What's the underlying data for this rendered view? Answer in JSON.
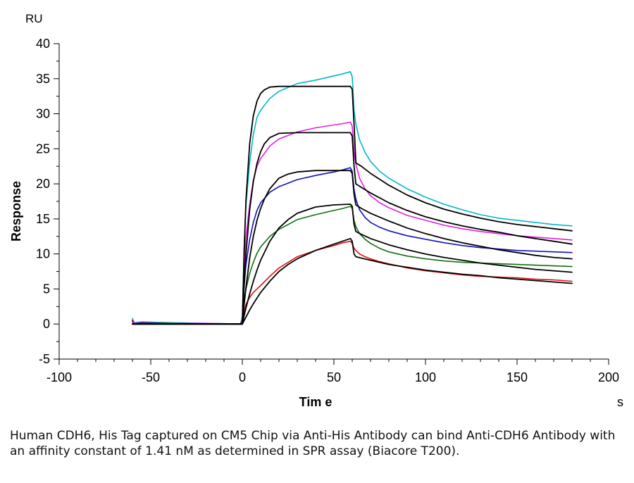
{
  "chart_data": {
    "type": "line",
    "title": "",
    "xlabel": "Tim e",
    "x_unit": "s",
    "ylabel": "Response",
    "y_unit": "RU",
    "xlim": [
      -100,
      200
    ],
    "ylim": [
      -5,
      40
    ],
    "x_ticks": [
      -100,
      -50,
      0,
      50,
      100,
      150,
      200
    ],
    "y_ticks": [
      -5,
      0,
      5,
      10,
      15,
      20,
      25,
      30,
      35,
      40
    ],
    "x_minor_step": 10,
    "y_minor_step": 2.5,
    "grid": false,
    "legend": "none",
    "fit_color": "#000000",
    "series": [
      {
        "color": "#00B8C8",
        "kind": "measured",
        "x": [
          -60,
          -59,
          -55,
          -40,
          -20,
          -1,
          0,
          0.5,
          1,
          2,
          4,
          6,
          8,
          10,
          15,
          20,
          30,
          40,
          50,
          55,
          59,
          60,
          61,
          62,
          64,
          67,
          70,
          75,
          80,
          90,
          100,
          110,
          120,
          130,
          140,
          150,
          160,
          170,
          180
        ],
        "y": [
          0.8,
          0.2,
          0.3,
          0.2,
          0.1,
          0,
          1,
          6,
          11,
          17,
          23,
          27,
          29.5,
          30.5,
          32.2,
          33.2,
          34.3,
          34.8,
          35.4,
          35.7,
          36,
          35.3,
          30.5,
          28.5,
          26.3,
          24.5,
          23.2,
          21.8,
          20.8,
          19.3,
          18.1,
          17.1,
          16.3,
          15.6,
          15.1,
          14.8,
          14.5,
          14.2,
          14
        ]
      },
      {
        "color": "#E020E0",
        "kind": "measured",
        "x": [
          -60,
          -59,
          -55,
          -40,
          -20,
          -1,
          0,
          0.5,
          1,
          2,
          4,
          6,
          8,
          10,
          15,
          20,
          30,
          40,
          50,
          55,
          59,
          60,
          61,
          62,
          64,
          67,
          70,
          75,
          80,
          90,
          100,
          110,
          120,
          130,
          140,
          150,
          160,
          170,
          180
        ],
        "y": [
          0.6,
          0.1,
          0.2,
          0.1,
          0.1,
          0,
          0.8,
          4.5,
          8,
          12.5,
          17,
          20.5,
          22.5,
          23.6,
          25.4,
          26.4,
          27.4,
          28,
          28.4,
          28.6,
          28.8,
          28.2,
          24.5,
          22.8,
          20.8,
          19.3,
          18.3,
          17.3,
          16.6,
          15.5,
          14.8,
          14.1,
          13.6,
          13.2,
          12.9,
          12.6,
          12.4,
          12.2,
          12
        ]
      },
      {
        "color": "#1010C0",
        "kind": "measured",
        "x": [
          -60,
          -59,
          -55,
          -40,
          -20,
          -1,
          0,
          0.5,
          1,
          2,
          4,
          6,
          8,
          10,
          15,
          20,
          30,
          40,
          50,
          55,
          59,
          60,
          61,
          62,
          64,
          67,
          70,
          75,
          80,
          90,
          100,
          110,
          120,
          130,
          140,
          150,
          160,
          170,
          180
        ],
        "y": [
          0.5,
          0,
          0.2,
          0.1,
          0,
          0,
          0.5,
          3,
          5.5,
          8.5,
          12,
          14.5,
          16.2,
          17.3,
          18.8,
          19.6,
          20.6,
          21.2,
          21.7,
          22,
          22.3,
          21.8,
          19.2,
          17.8,
          16.3,
          15.2,
          14.5,
          13.8,
          13.3,
          12.6,
          12.1,
          11.6,
          11.2,
          10.9,
          10.7,
          10.5,
          10.4,
          10.3,
          10.2
        ]
      },
      {
        "color": "#107010",
        "kind": "measured",
        "x": [
          -60,
          -59,
          -55,
          -40,
          -20,
          -1,
          0,
          0.5,
          1,
          2,
          4,
          6,
          8,
          10,
          15,
          20,
          30,
          40,
          50,
          55,
          59,
          60,
          61,
          62,
          64,
          67,
          70,
          75,
          80,
          90,
          100,
          110,
          120,
          130,
          140,
          150,
          160,
          170,
          180
        ],
        "y": [
          0.4,
          0,
          0.1,
          0.1,
          0,
          0,
          0.4,
          1.8,
          3.2,
          5,
          7.2,
          8.8,
          10.1,
          11,
          12.5,
          13.5,
          14.9,
          15.6,
          16.2,
          16.5,
          16.8,
          16.5,
          14.8,
          13.9,
          12.9,
          12.1,
          11.5,
          10.8,
          10.3,
          9.7,
          9.3,
          9,
          8.8,
          8.7,
          8.6,
          8.5,
          8.4,
          8.3,
          8.2
        ]
      },
      {
        "color": "#E01010",
        "kind": "measured",
        "x": [
          -60,
          -59,
          -55,
          -40,
          -20,
          -1,
          0,
          0.5,
          1,
          2,
          4,
          6,
          8,
          10,
          15,
          20,
          30,
          40,
          50,
          55,
          59,
          60,
          61,
          62,
          64,
          67,
          70,
          75,
          80,
          90,
          100,
          110,
          120,
          130,
          140,
          150,
          160,
          170,
          180
        ],
        "y": [
          0.3,
          0,
          0.1,
          0,
          0,
          0,
          0.3,
          1,
          1.8,
          2.8,
          3.8,
          4.5,
          5,
          5.5,
          6.8,
          8,
          9.6,
          10.5,
          11.2,
          11.6,
          11.8,
          11.5,
          10.8,
          10.5,
          10,
          9.6,
          9.3,
          8.9,
          8.6,
          8,
          7.6,
          7.3,
          7,
          6.8,
          6.7,
          6.6,
          6.4,
          6.3,
          6.1
        ]
      },
      {
        "color": "#000000",
        "kind": "fit",
        "x": [
          -60,
          -55,
          -40,
          -20,
          0,
          1,
          2,
          4,
          6,
          8,
          10,
          12,
          15,
          20,
          30,
          40,
          50,
          59,
          60,
          61,
          62,
          65,
          70,
          80,
          90,
          100,
          110,
          120,
          130,
          140,
          150,
          160,
          170,
          180
        ],
        "y": [
          0,
          0,
          0,
          0,
          0,
          10.5,
          17.7,
          25.7,
          29.7,
          31.8,
          32.9,
          33.4,
          33.8,
          33.9,
          33.9,
          33.9,
          33.9,
          33.9,
          33.5,
          28.5,
          23,
          22.5,
          21.5,
          19.8,
          18.4,
          17.3,
          16.4,
          15.7,
          15.1,
          14.6,
          14.2,
          13.9,
          13.6,
          13.3
        ]
      },
      {
        "color": "#000000",
        "kind": "fit",
        "x": [
          -60,
          -55,
          -40,
          -20,
          0,
          1,
          2,
          4,
          6,
          8,
          10,
          12,
          15,
          20,
          30,
          40,
          50,
          59,
          60,
          61,
          62,
          65,
          70,
          80,
          90,
          100,
          110,
          120,
          130,
          140,
          150,
          160,
          170,
          180
        ],
        "y": [
          0,
          0,
          0,
          0,
          0,
          5.5,
          10,
          16.3,
          20.3,
          22.9,
          24.6,
          25.7,
          26.6,
          27.2,
          27.3,
          27.3,
          27.3,
          27.3,
          26.8,
          22.5,
          20,
          19.5,
          18.7,
          17.3,
          16.2,
          15.3,
          14.6,
          14,
          13.5,
          13.1,
          12.6,
          12.2,
          11.8,
          11.4
        ]
      },
      {
        "color": "#000000",
        "kind": "fit",
        "x": [
          -60,
          -55,
          -40,
          -20,
          0,
          1,
          2,
          4,
          6,
          8,
          10,
          12,
          15,
          20,
          25,
          30,
          40,
          50,
          59,
          60,
          61,
          62,
          65,
          70,
          80,
          90,
          100,
          110,
          120,
          130,
          140,
          150,
          160,
          170,
          180
        ],
        "y": [
          0,
          0,
          0,
          0,
          0,
          2.8,
          5.2,
          9.4,
          12.5,
          14.8,
          16.5,
          17.8,
          19.3,
          20.8,
          21.4,
          21.7,
          21.9,
          21.9,
          21.9,
          21.5,
          18.5,
          17,
          16.5,
          15.8,
          14.7,
          13.7,
          12.9,
          12.2,
          11.6,
          11.1,
          10.6,
          10.2,
          9.8,
          9.5,
          9.3
        ]
      },
      {
        "color": "#000000",
        "kind": "fit",
        "x": [
          -60,
          -55,
          -40,
          -20,
          0,
          1,
          2,
          4,
          6,
          8,
          10,
          15,
          20,
          25,
          30,
          40,
          50,
          59,
          60,
          61,
          62,
          65,
          70,
          80,
          90,
          100,
          110,
          120,
          130,
          140,
          150,
          160,
          170,
          180
        ],
        "y": [
          0,
          0,
          0,
          0,
          0,
          1.2,
          2.3,
          4.3,
          6.1,
          7.7,
          9.1,
          11.8,
          13.7,
          14.9,
          15.8,
          16.7,
          17,
          17.1,
          16.8,
          14.2,
          13.2,
          12.8,
          12.2,
          11.3,
          10.6,
          10,
          9.5,
          9.1,
          8.7,
          8.4,
          8.1,
          7.8,
          7.6,
          7.4
        ]
      },
      {
        "color": "#000000",
        "kind": "fit",
        "x": [
          -60,
          -55,
          -40,
          -20,
          0,
          1,
          2,
          4,
          6,
          8,
          10,
          15,
          20,
          25,
          30,
          40,
          50,
          59,
          60,
          61,
          62,
          65,
          70,
          80,
          90,
          100,
          110,
          120,
          130,
          140,
          150,
          160,
          170,
          180
        ],
        "y": [
          0,
          0,
          0,
          0,
          0,
          0.5,
          1,
          2,
          2.9,
          3.7,
          4.5,
          6.1,
          7.5,
          8.5,
          9.3,
          10.5,
          11.4,
          12.2,
          11.8,
          10,
          9.6,
          9.4,
          9.1,
          8.5,
          8.1,
          7.7,
          7.4,
          7.1,
          6.9,
          6.6,
          6.4,
          6.2,
          6,
          5.8
        ]
      }
    ]
  },
  "caption": "Human CDH6, His Tag captured on CM5 Chip via Anti-His Antibody can bind Anti-CDH6 Antibody with an affinity constant of 1.41 nM as determined in SPR assay (Biacore T200)."
}
